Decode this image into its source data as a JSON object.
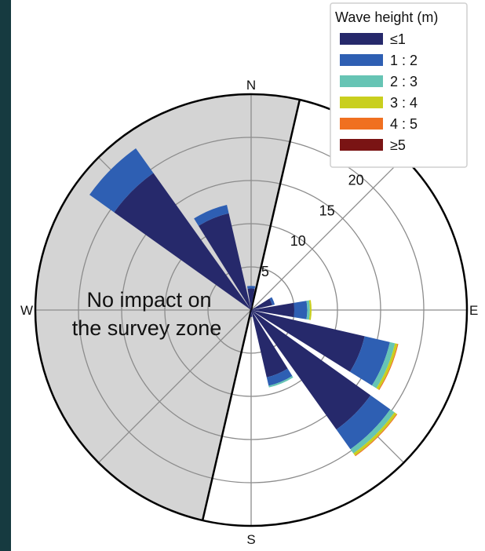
{
  "chart_data": {
    "type": "wind-rose",
    "directions": [
      "N",
      "E",
      "S",
      "W"
    ],
    "radial_ticks": [
      "5",
      "10",
      "15",
      "20"
    ],
    "rmax": 25,
    "annotation": [
      "No impact on",
      "the survey zone"
    ],
    "legend": {
      "title": "Wave height (m)",
      "placement": "top-right",
      "entries": [
        {
          "label": "≤1",
          "color": "#26296b"
        },
        {
          "label": "1 : 2",
          "color": "#2e5fb3"
        },
        {
          "label": "2 : 3",
          "color": "#66c4b4"
        },
        {
          "label": "3 : 4",
          "color": "#c9cf1e"
        },
        {
          "label": "4 : 5",
          "color": "#f07020"
        },
        {
          "label": "≥5",
          "color": "#7a1414"
        }
      ]
    },
    "bins": [
      {
        "direction_deg": 315,
        "values": [
          19.5,
          3.5,
          0,
          0,
          0,
          0
        ]
      },
      {
        "direction_deg": 337.5,
        "values": [
          11.5,
          1.0,
          0,
          0,
          0,
          0
        ]
      },
      {
        "direction_deg": 0,
        "values": [
          2.5,
          0.3,
          0,
          0,
          0,
          0
        ]
      },
      {
        "direction_deg": 67.5,
        "values": [
          2.5,
          0.3,
          0,
          0,
          0,
          0
        ]
      },
      {
        "direction_deg": 90,
        "values": [
          5.0,
          1.5,
          0.3,
          0.2,
          0,
          0
        ]
      },
      {
        "direction_deg": 112.5,
        "values": [
          13.5,
          3.0,
          0.6,
          0.3,
          0.1,
          0
        ]
      },
      {
        "direction_deg": 135,
        "values": [
          17.0,
          2.8,
          0.6,
          0.3,
          0.1,
          0
        ]
      },
      {
        "direction_deg": 157.5,
        "values": [
          8.0,
          1.0,
          0.2,
          0,
          0,
          0
        ]
      },
      {
        "direction_deg": 180,
        "values": [
          0.8,
          0,
          0,
          0,
          0,
          0
        ]
      }
    ],
    "shaded_sector": {
      "start_deg": 193,
      "end_deg": 373,
      "color": "#d4d4d4",
      "meaning": "no impact on the survey zone"
    }
  }
}
